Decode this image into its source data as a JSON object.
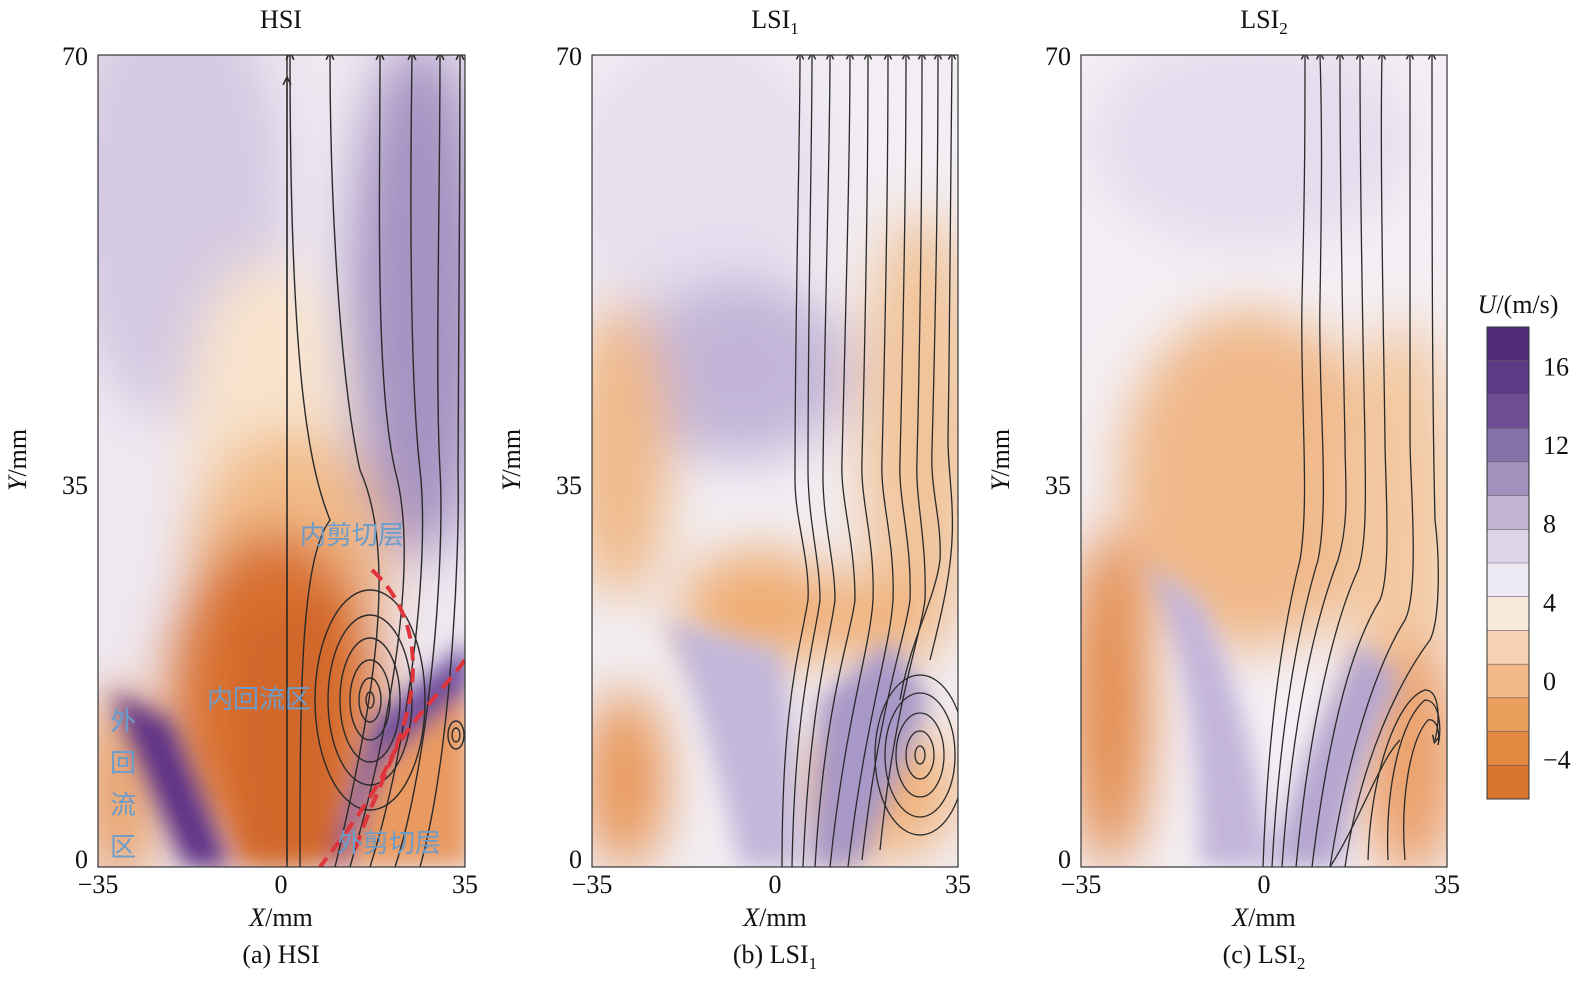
{
  "chart_data": [
    {
      "type": "heatmap",
      "panel_label": "HSI",
      "caption": "(a) HSI",
      "xlabel_var": "X",
      "xlabel_unit": "/mm",
      "ylabel_var": "Y",
      "ylabel_unit": "/mm",
      "xlim": [
        -35,
        35
      ],
      "ylim": [
        0,
        70
      ],
      "x_ticks": [
        "−35",
        "0",
        "35"
      ],
      "y_ticks": [
        "0",
        "35",
        "70"
      ],
      "annotations": [
        {
          "text": "内剪切层",
          "x": 10,
          "y": 27
        },
        {
          "text": "内回流区",
          "x": -4,
          "y": 13
        },
        {
          "text": "外剪切层",
          "x": 23,
          "y": 1.5
        }
      ],
      "annotation_vertical": {
        "chars": [
          "外",
          "回",
          "流",
          "区"
        ],
        "x": -29,
        "y_top": 12
      }
    },
    {
      "type": "heatmap",
      "panel_label": "LSI",
      "panel_label_sub": "1",
      "caption": "(b) LSI",
      "caption_sub": "1",
      "xlabel_var": "X",
      "xlabel_unit": "/mm",
      "ylabel_var": "Y",
      "ylabel_unit": "/mm",
      "xlim": [
        -35,
        35
      ],
      "ylim": [
        0,
        70
      ],
      "x_ticks": [
        "−35",
        "0",
        "35"
      ],
      "y_ticks": [
        "0",
        "35",
        "70"
      ]
    },
    {
      "type": "heatmap",
      "panel_label": "LSI",
      "panel_label_sub": "2",
      "caption": "(c) LSI",
      "caption_sub": "2",
      "xlabel_var": "X",
      "xlabel_unit": "/mm",
      "ylabel_var": "Y",
      "ylabel_unit": "/mm",
      "xlim": [
        -35,
        35
      ],
      "ylim": [
        0,
        70
      ],
      "x_ticks": [
        "−35",
        "0",
        "35"
      ],
      "y_ticks": [
        "0",
        "35",
        "70"
      ]
    }
  ],
  "colorbar": {
    "label_var": "U",
    "label_unit": "/(m/s)",
    "range": [
      -6,
      18
    ],
    "ticks": [
      "16",
      "12",
      "8",
      "4",
      "0",
      "−4"
    ],
    "colors_top_to_bottom": [
      "#4f2a76",
      "#5c3a85",
      "#6e4f95",
      "#8670a8",
      "#a291bd",
      "#c1b5d3",
      "#dcd5e7",
      "#eeeaf3",
      "#f8eadb",
      "#f5d2b2",
      "#f0b986",
      "#eb9f5d",
      "#e48a40",
      "#d9762e"
    ]
  },
  "colors": {
    "orange_strong": "#d2692a",
    "orange_light": "#f3c18f",
    "white": "#f6f3f6",
    "purple_light": "#b8a8d0",
    "purple_strong": "#5a2f85",
    "streamline": "#2a2a2a",
    "shear_dash": "#e0343c",
    "annotation": "#6a9ccc"
  }
}
